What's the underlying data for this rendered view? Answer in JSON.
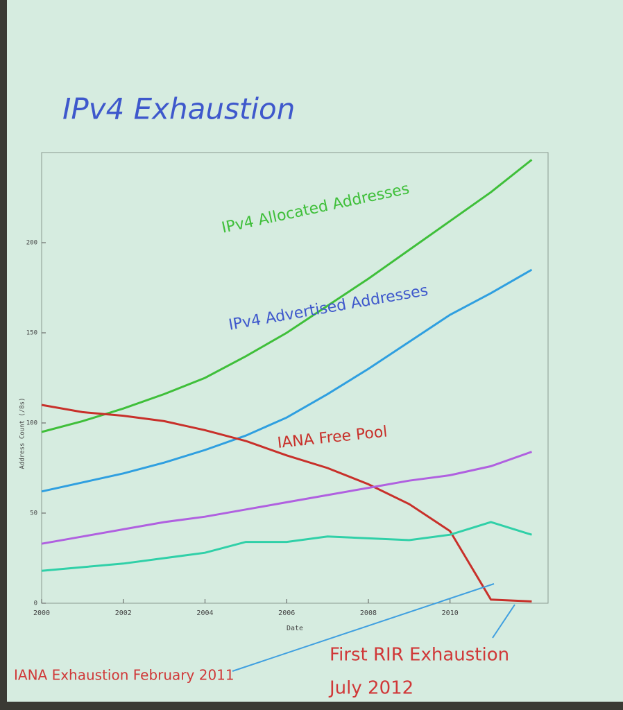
{
  "chart_data": {
    "type": "line",
    "title": "IPv4 Exhaustion",
    "x_label": "Date",
    "y_label": "Address Count (/8s)",
    "x": [
      2000,
      2001,
      2002,
      2003,
      2004,
      2005,
      2006,
      2007,
      2008,
      2009,
      2010,
      2011,
      2012
    ],
    "series": [
      {
        "name": "IPv4 Allocated Addresses",
        "color": "#3fbf3a",
        "values": [
          95,
          101,
          108,
          116,
          125,
          137,
          150,
          165,
          180,
          196,
          212,
          228,
          246
        ]
      },
      {
        "name": "IPv4 Advertised Addresses",
        "color": "#2f9fe0",
        "values": [
          62,
          67,
          72,
          78,
          85,
          93,
          103,
          116,
          130,
          145,
          160,
          172,
          185
        ]
      },
      {
        "name": "IANA Free Pool",
        "color": "#c8302a",
        "values": [
          110,
          106,
          104,
          101,
          96,
          90,
          82,
          75,
          66,
          55,
          40,
          2,
          1
        ]
      },
      {
        "color": "#b060e0",
        "values": [
          33,
          37,
          41,
          45,
          48,
          52,
          56,
          60,
          64,
          68,
          71,
          76,
          84
        ]
      },
      {
        "color": "#30d0a8",
        "values": [
          18,
          20,
          22,
          25,
          28,
          34,
          34,
          37,
          36,
          35,
          38,
          45,
          38
        ]
      }
    ],
    "xlim": [
      2000,
      2012.4
    ],
    "ylim": [
      0,
      250
    ],
    "xticks": [
      2000,
      2002,
      2004,
      2006,
      2008,
      2010
    ],
    "yticks": [
      0,
      50,
      100,
      150,
      200
    ],
    "annotations": [
      "IANA Exhaustion  February 2011",
      "First RIR Exhaustion",
      "July 2012"
    ]
  }
}
